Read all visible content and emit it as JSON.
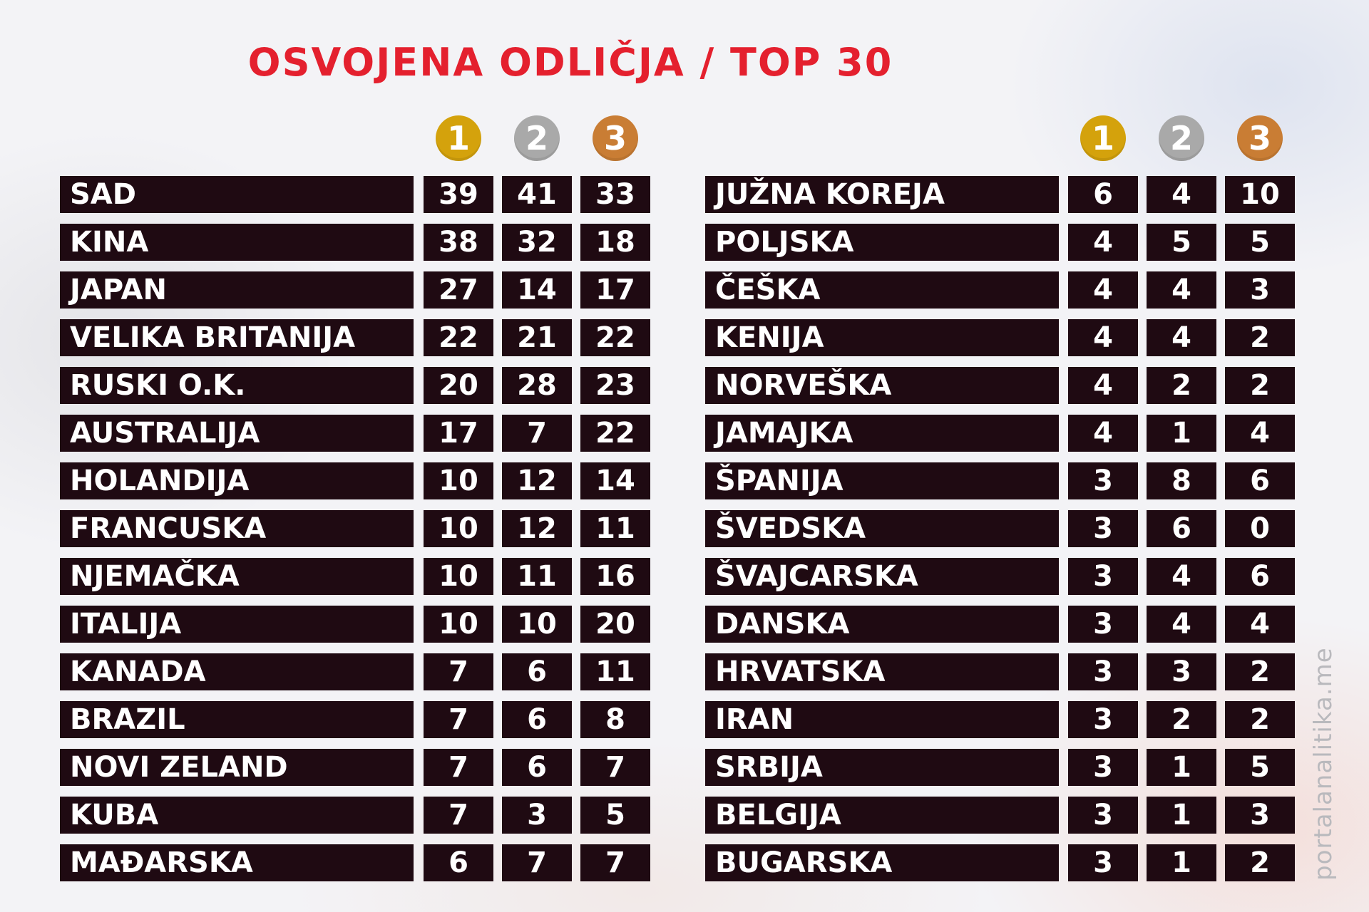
{
  "title": "OSVOJENA ODLIČJA / TOP 30",
  "watermark": "portalanalitika.me",
  "medals": [
    {
      "label": "1",
      "color": "#d4a20c"
    },
    {
      "label": "2",
      "color": "#a9a9a9"
    },
    {
      "label": "3",
      "color": "#c97d34"
    }
  ],
  "colors": {
    "title": "#e4202e",
    "row_bg": "#1f0a12",
    "row_text": "#ffffff"
  },
  "chart_data": {
    "type": "table",
    "title": "OSVOJENA ODLIČJA / TOP 30",
    "columns": [
      "1",
      "2",
      "3"
    ],
    "tables": [
      {
        "rows": [
          {
            "country": "SAD",
            "gold": "39",
            "silver": "41",
            "bronze": "33"
          },
          {
            "country": "KINA",
            "gold": "38",
            "silver": "32",
            "bronze": "18"
          },
          {
            "country": "JAPAN",
            "gold": "27",
            "silver": "14",
            "bronze": "17"
          },
          {
            "country": "VELIKA BRITANIJA",
            "gold": "22",
            "silver": "21",
            "bronze": "22"
          },
          {
            "country": "RUSKI O.K.",
            "gold": "20",
            "silver": "28",
            "bronze": "23"
          },
          {
            "country": "AUSTRALIJA",
            "gold": "17",
            "silver": "7",
            "bronze": "22"
          },
          {
            "country": "HOLANDIJA",
            "gold": "10",
            "silver": "12",
            "bronze": "14"
          },
          {
            "country": "FRANCUSKA",
            "gold": "10",
            "silver": "12",
            "bronze": "11"
          },
          {
            "country": "NJEMAČKA",
            "gold": "10",
            "silver": "11",
            "bronze": "16"
          },
          {
            "country": "ITALIJA",
            "gold": "10",
            "silver": "10",
            "bronze": "20"
          },
          {
            "country": "KANADA",
            "gold": "7",
            "silver": "6",
            "bronze": "11"
          },
          {
            "country": "BRAZIL",
            "gold": "7",
            "silver": "6",
            "bronze": "8"
          },
          {
            "country": "NOVI ZELAND",
            "gold": "7",
            "silver": "6",
            "bronze": "7"
          },
          {
            "country": "KUBA",
            "gold": "7",
            "silver": "3",
            "bronze": "5"
          },
          {
            "country": "MAĐARSKA",
            "gold": "6",
            "silver": "7",
            "bronze": "7"
          }
        ]
      },
      {
        "rows": [
          {
            "country": "JUŽNA KOREJA",
            "gold": "6",
            "silver": "4",
            "bronze": "10"
          },
          {
            "country": "POLJSKA",
            "gold": "4",
            "silver": "5",
            "bronze": "5"
          },
          {
            "country": "ČEŠKA",
            "gold": "4",
            "silver": "4",
            "bronze": "3"
          },
          {
            "country": "KENIJA",
            "gold": "4",
            "silver": "4",
            "bronze": "2"
          },
          {
            "country": "NORVEŠKA",
            "gold": "4",
            "silver": "2",
            "bronze": "2"
          },
          {
            "country": "JAMAJKA",
            "gold": "4",
            "silver": "1",
            "bronze": "4"
          },
          {
            "country": "ŠPANIJA",
            "gold": "3",
            "silver": "8",
            "bronze": "6"
          },
          {
            "country": "ŠVEDSKA",
            "gold": "3",
            "silver": "6",
            "bronze": "0"
          },
          {
            "country": "ŠVAJCARSKA",
            "gold": "3",
            "silver": "4",
            "bronze": "6"
          },
          {
            "country": "DANSKA",
            "gold": "3",
            "silver": "4",
            "bronze": "4"
          },
          {
            "country": "HRVATSKA",
            "gold": "3",
            "silver": "3",
            "bronze": "2"
          },
          {
            "country": "IRAN",
            "gold": "3",
            "silver": "2",
            "bronze": "2"
          },
          {
            "country": "SRBIJA",
            "gold": "3",
            "silver": "1",
            "bronze": "5"
          },
          {
            "country": "BELGIJA",
            "gold": "3",
            "silver": "1",
            "bronze": "3"
          },
          {
            "country": "BUGARSKA",
            "gold": "3",
            "silver": "1",
            "bronze": "2"
          }
        ]
      }
    ]
  }
}
